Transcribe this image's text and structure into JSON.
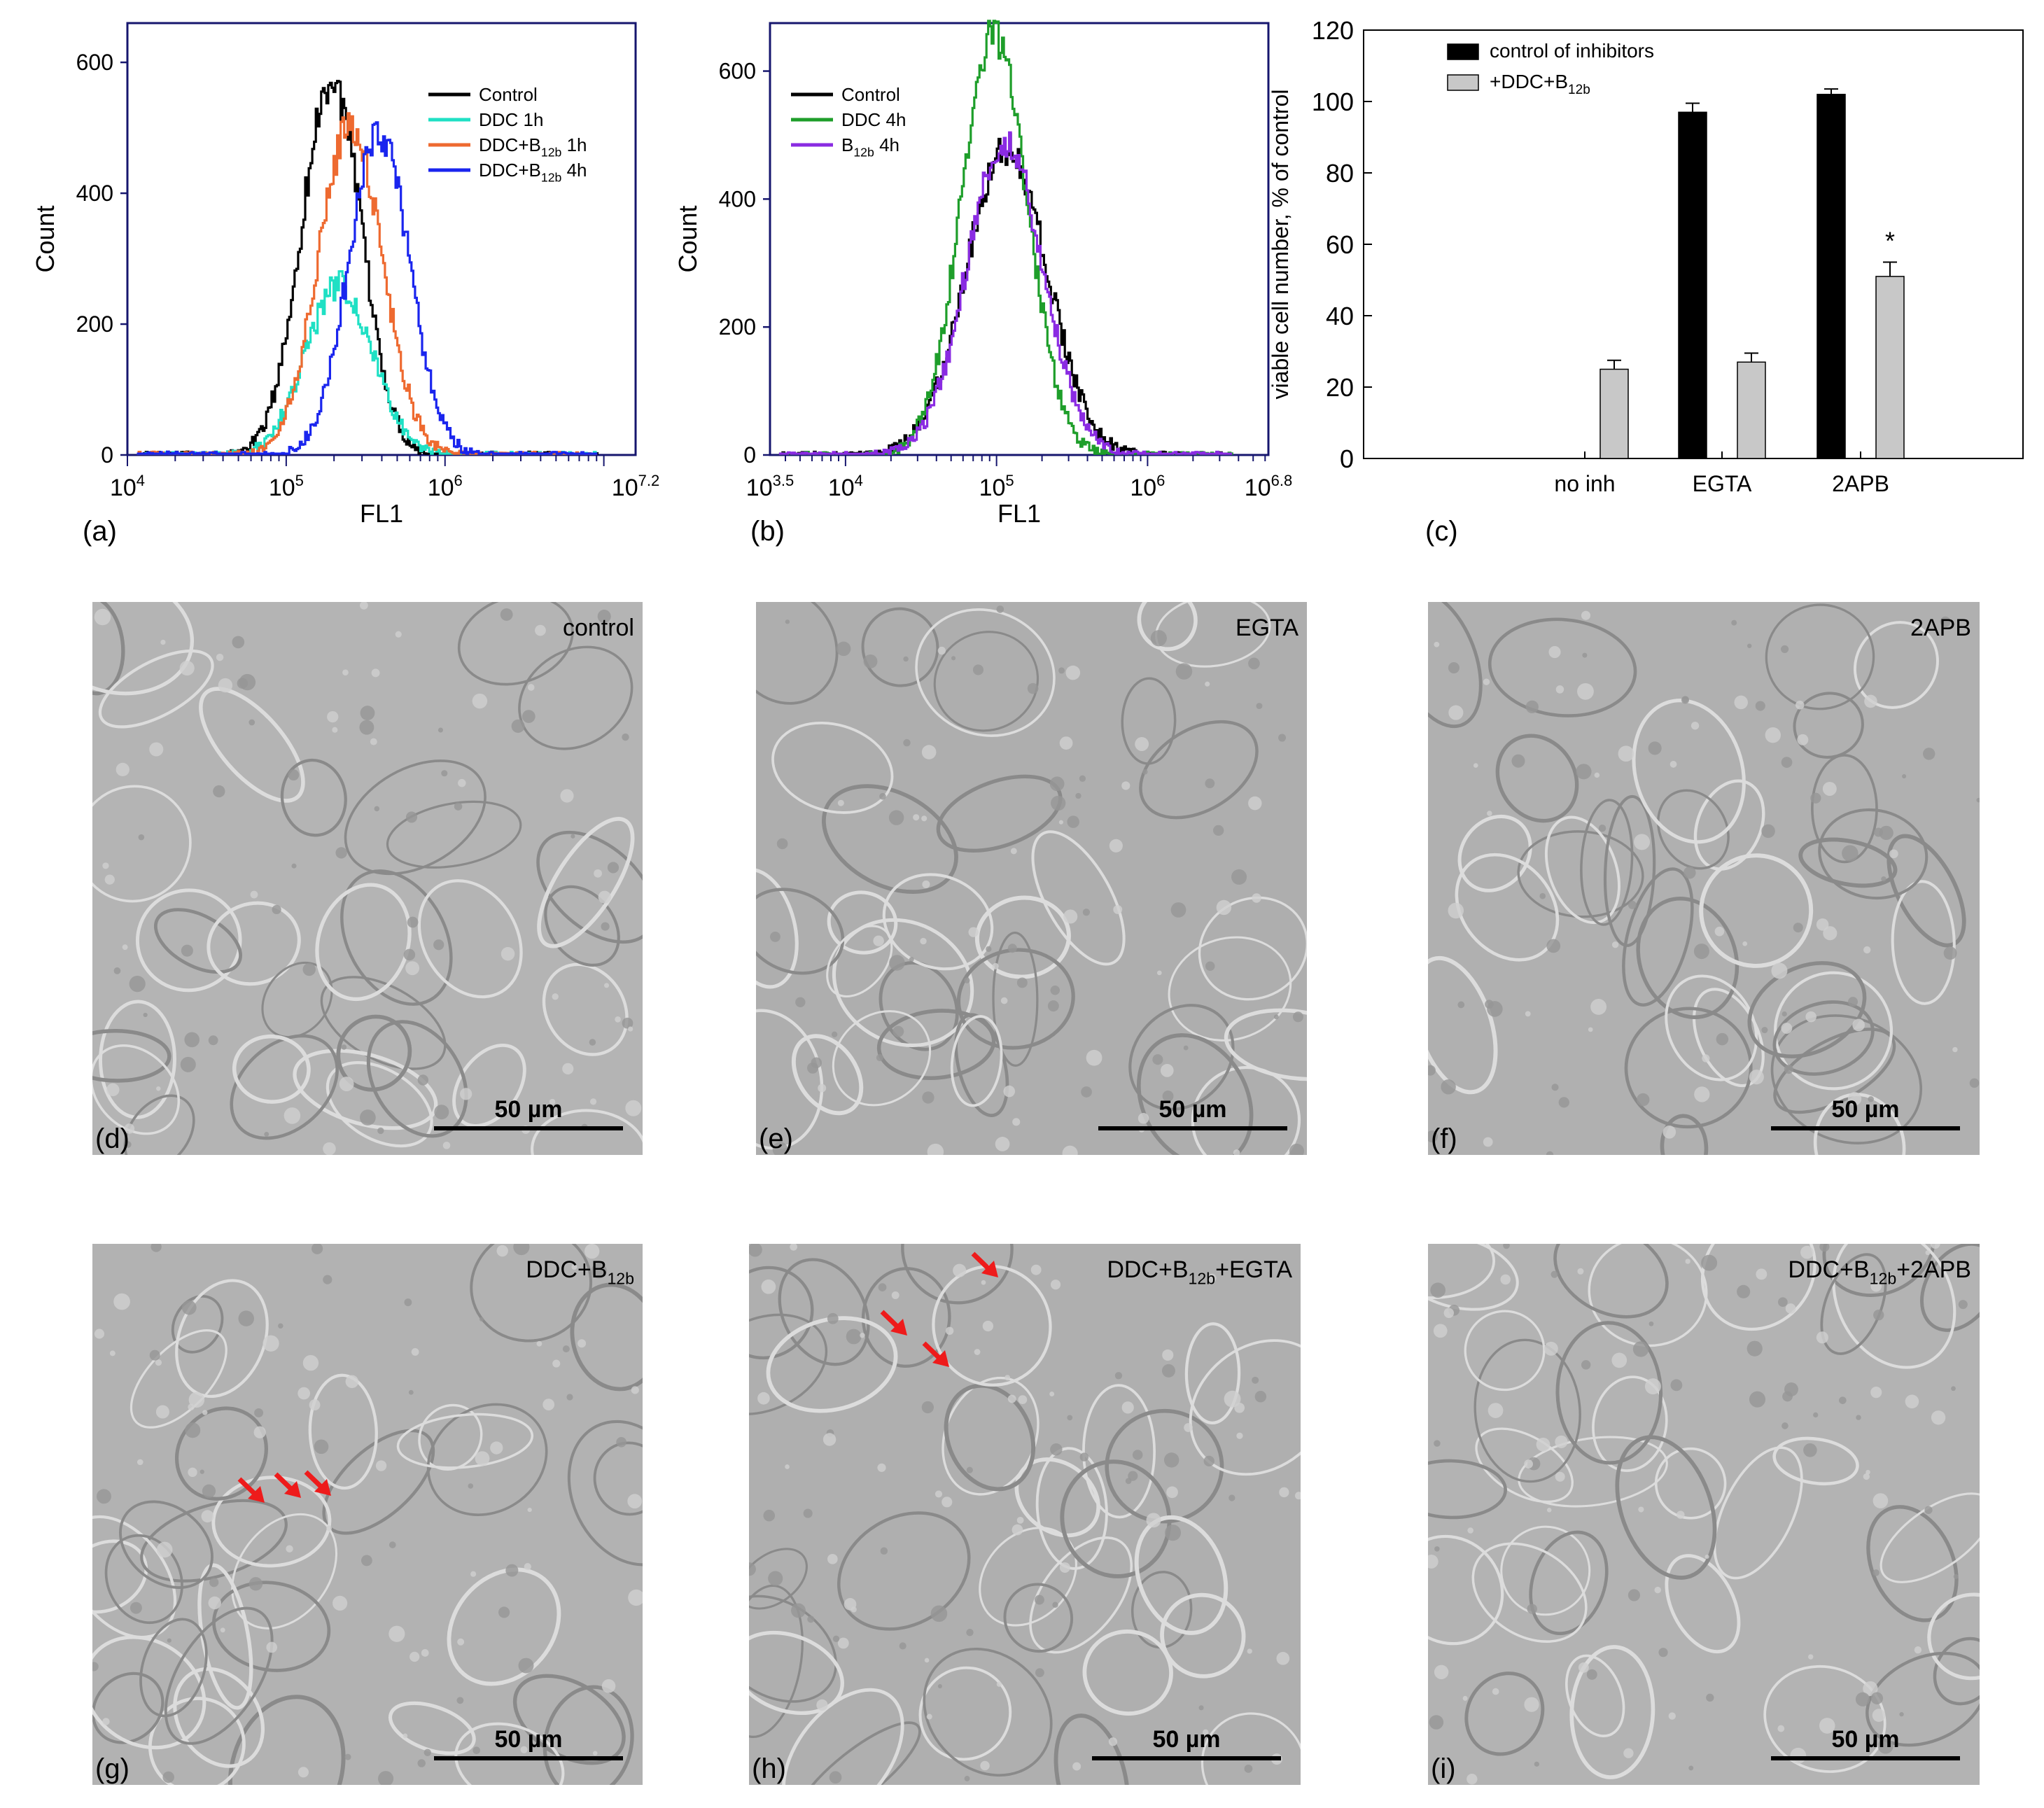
{
  "figure": {
    "panel_labels": [
      "(a)",
      "(b)",
      "(c)",
      "(d)",
      "(e)",
      "(f)",
      "(g)",
      "(h)",
      "(i)"
    ]
  },
  "chart_data": [
    {
      "panel": "(a)",
      "type": "line",
      "xlabel": "FL1",
      "ylabel": "Count",
      "x_scale": "log",
      "xlim_log10": [
        4,
        7.2
      ],
      "ylim": [
        0,
        660
      ],
      "yticks": [
        0,
        200,
        400,
        600
      ],
      "xtick_labels": [
        {
          "base": "10",
          "exp": "4",
          "pos": 4
        },
        {
          "base": "10",
          "exp": "5",
          "pos": 5
        },
        {
          "base": "10",
          "exp": "6",
          "pos": 6
        },
        {
          "base": "10",
          "exp": "7.2",
          "pos": 7.2
        }
      ],
      "legend_position": "top-right",
      "series": [
        {
          "name": "Control",
          "label_main": "Control",
          "label_sub": "",
          "label_tail": "",
          "color": "#000000",
          "peak_log10": 5.28,
          "sigma": 0.19,
          "amplitude": 570
        },
        {
          "name": "DDC 1h",
          "label_main": "DDC 1h",
          "label_sub": "",
          "label_tail": "",
          "color": "#1fe0c4",
          "peak_log10": 5.33,
          "sigma": 0.21,
          "amplitude": 260
        },
        {
          "name": "DDC+B12b 1h",
          "label_main": "DDC+B",
          "label_sub": "12b",
          "label_tail": " 1h",
          "color": "#ee6a30",
          "peak_log10": 5.4,
          "sigma": 0.2,
          "amplitude": 505
        },
        {
          "name": "DDC+B12b 4h",
          "label_main": "DDC+B",
          "label_sub": "12b",
          "label_tail": " 4h",
          "color": "#1a25ee",
          "peak_log10": 5.58,
          "sigma": 0.19,
          "amplitude": 490
        }
      ]
    },
    {
      "panel": "(b)",
      "type": "line",
      "xlabel": "FL1",
      "ylabel": "Count",
      "x_scale": "log",
      "xlim_log10": [
        3.5,
        6.8
      ],
      "ylim": [
        0,
        675
      ],
      "yticks": [
        0,
        200,
        400,
        600
      ],
      "xtick_labels": [
        {
          "base": "10",
          "exp": "3.5",
          "pos": 3.5
        },
        {
          "base": "10",
          "exp": "4",
          "pos": 4
        },
        {
          "base": "10",
          "exp": "5",
          "pos": 5
        },
        {
          "base": "10",
          "exp": "6",
          "pos": 6
        },
        {
          "base": "10",
          "exp": "6.8",
          "pos": 6.8
        }
      ],
      "legend_position": "top-left",
      "series": [
        {
          "name": "Control",
          "label_main": "Control",
          "label_sub": "",
          "label_tail": "",
          "color": "#000000",
          "peak_log10": 5.06,
          "sigma": 0.27,
          "amplitude": 480
        },
        {
          "name": "DDC 4h",
          "label_main": "DDC 4h",
          "label_sub": "",
          "label_tail": "",
          "color": "#1e9e2a",
          "peak_log10": 4.98,
          "sigma": 0.22,
          "amplitude": 655
        },
        {
          "name": "B12b 4h",
          "label_main": "B",
          "label_sub": "12b",
          "label_tail": " 4h",
          "color": "#8a2be2",
          "peak_log10": 5.05,
          "sigma": 0.25,
          "amplitude": 490
        }
      ]
    },
    {
      "panel": "(c)",
      "type": "bar",
      "ylabel": "viable cell number, % of control",
      "ylim": [
        0,
        120
      ],
      "yticks": [
        0,
        20,
        40,
        60,
        80,
        100,
        120
      ],
      "categories": [
        "no inh",
        "EGTA",
        "2APB"
      ],
      "legend_position": "top-left",
      "series": [
        {
          "name": "control of inhibitors",
          "label_main": "control of inhibitors",
          "label_sub": "",
          "label_tail": "",
          "color": "#000000",
          "values": [
            null,
            97,
            102
          ],
          "errors": [
            null,
            2.5,
            1.5
          ]
        },
        {
          "name": "+DDC+B12b",
          "label_main": "+DDC+B",
          "label_sub": "12b",
          "label_tail": "",
          "color": "#c8c8c8",
          "values": [
            25,
            27,
            51
          ],
          "errors": [
            2.5,
            2.5,
            4
          ]
        }
      ],
      "annotations": [
        {
          "text": "*",
          "category": "2APB",
          "series": 1
        }
      ]
    }
  ],
  "micrographs": [
    {
      "label": "(d)",
      "title_main": "control",
      "title_sub": "",
      "title_tail": "",
      "scale": "50 µm",
      "bg": "#b4b4b4",
      "arrows": []
    },
    {
      "label": "(e)",
      "title_main": "EGTA",
      "title_sub": "",
      "title_tail": "",
      "scale": "50 µm",
      "bg": "#aeaeae",
      "arrows": []
    },
    {
      "label": "(f)",
      "title_main": "2APB",
      "title_sub": "",
      "title_tail": "",
      "scale": "50 µm",
      "bg": "#b0b0b0",
      "arrows": []
    },
    {
      "label": "(g)",
      "title_main": "DDC+B",
      "title_sub": "12b",
      "title_tail": "",
      "scale": "50 µm",
      "bg": "#b2b2b2",
      "arrows": [
        1,
        2,
        3
      ]
    },
    {
      "label": "(h)",
      "title_main": "DDC+B",
      "title_sub": "12b",
      "title_tail": "+EGTA",
      "scale": "50 µm",
      "bg": "#afafaf",
      "arrows": [
        1,
        2,
        3
      ]
    },
    {
      "label": "(i)",
      "title_main": "DDC+B",
      "title_sub": "12b",
      "title_tail": "+2APB",
      "scale": "50 µm",
      "bg": "#b3b3b3",
      "arrows": []
    }
  ],
  "colors": {
    "axis_frame": "#16166e",
    "arrow": "#ee1b1b"
  }
}
